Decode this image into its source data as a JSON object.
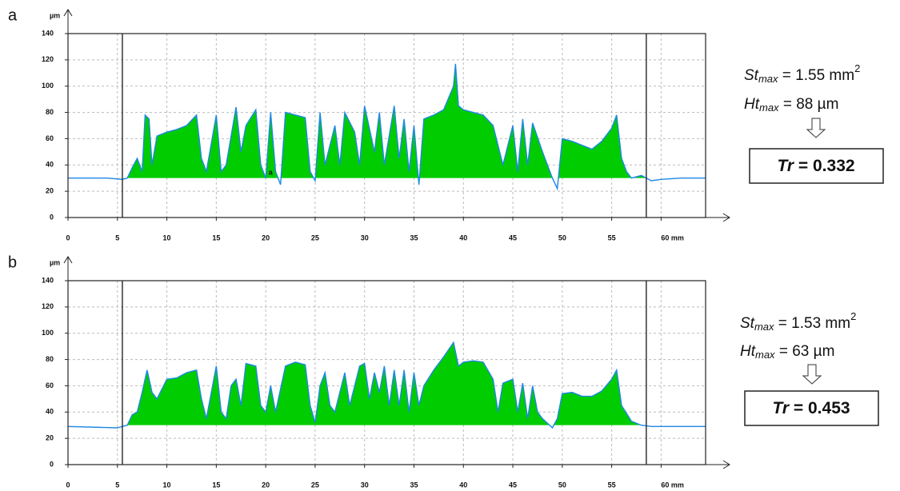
{
  "chart_data": [
    {
      "type": "area",
      "panel_label": "a",
      "y_label": "µm",
      "color": "#1e88e5",
      "fill_color": "#00cc00",
      "fill_base": 30,
      "cursors": [
        5.5,
        58.5
      ],
      "grid": true,
      "xlim": [
        0,
        64.5
      ],
      "ylim": [
        0,
        140
      ],
      "xticks": [
        0,
        5,
        10,
        15,
        20,
        25,
        30,
        35,
        40,
        45,
        50,
        55,
        {
          "value": 60,
          "label": "60 mm"
        }
      ],
      "yticks": [
        0,
        20,
        40,
        60,
        80,
        100,
        120,
        140
      ],
      "marker": {
        "text": "a",
        "x": 20.5,
        "y": 34
      },
      "x": [
        0,
        2,
        4,
        5.5,
        6,
        6.5,
        7,
        7.5,
        7.8,
        8.2,
        8.5,
        9,
        10,
        11,
        12,
        13,
        13.5,
        14,
        15,
        15.5,
        16,
        17,
        17.5,
        18,
        19,
        19.5,
        20,
        20.5,
        21,
        21.5,
        22,
        23,
        24,
        24.5,
        25,
        25.5,
        26,
        27,
        27.5,
        28,
        29,
        29.5,
        30,
        31,
        31.5,
        32,
        33,
        33.5,
        34,
        34.5,
        35,
        35.5,
        36,
        37,
        38,
        39,
        39.2,
        39.5,
        40,
        41,
        42,
        43,
        44,
        45,
        45.5,
        46,
        46.5,
        47,
        48,
        48.5,
        49,
        49.5,
        50,
        51,
        52,
        53,
        54,
        55,
        55.5,
        56,
        56.5,
        57,
        58,
        59,
        60,
        62,
        64.5
      ],
      "values": [
        30,
        30,
        30,
        29,
        30,
        38,
        45,
        35,
        78,
        75,
        40,
        62,
        65,
        67,
        70,
        78,
        45,
        35,
        78,
        35,
        40,
        84,
        50,
        70,
        82,
        40,
        30,
        80,
        35,
        25,
        80,
        78,
        76,
        35,
        28,
        80,
        40,
        70,
        40,
        80,
        65,
        40,
        85,
        50,
        80,
        40,
        85,
        45,
        75,
        35,
        70,
        25,
        75,
        78,
        82,
        100,
        117,
        85,
        82,
        80,
        78,
        70,
        40,
        70,
        35,
        75,
        40,
        72,
        50,
        40,
        30,
        22,
        60,
        58,
        55,
        52,
        58,
        68,
        78,
        45,
        35,
        30,
        32,
        28,
        29,
        30,
        30
      ],
      "annotation": {
        "st": {
          "symbol": "St",
          "sub": "max",
          "text": " = 1.55 mm",
          "sup": "2"
        },
        "ht": {
          "symbol": "Ht",
          "sub": "max",
          "text": " = 88 µm"
        },
        "tr": {
          "symbol": "Tr",
          "text": " = 0.332"
        }
      }
    },
    {
      "type": "area",
      "panel_label": "b",
      "y_label": "µm",
      "color": "#1e88e5",
      "fill_color": "#00cc00",
      "fill_base": 30,
      "cursors": [
        5.5,
        58.5
      ],
      "grid": true,
      "xlim": [
        0,
        64.5
      ],
      "ylim": [
        0,
        140
      ],
      "xticks": [
        0,
        5,
        10,
        15,
        20,
        25,
        30,
        35,
        40,
        45,
        50,
        55,
        {
          "value": 60,
          "label": "60 mm"
        }
      ],
      "yticks": [
        0,
        20,
        40,
        60,
        80,
        100,
        120,
        140
      ],
      "x": [
        0,
        5,
        5.5,
        6,
        6.5,
        7,
        7.5,
        8,
        8.5,
        9,
        10,
        11,
        12,
        13,
        13.5,
        14,
        15,
        15.5,
        16,
        16.5,
        17,
        17.5,
        18,
        19,
        19.5,
        20,
        20.5,
        21,
        22,
        23,
        24,
        24.5,
        25,
        25.5,
        26,
        26.5,
        27,
        28,
        28.5,
        29,
        29.5,
        30,
        30.5,
        31,
        31.5,
        32,
        32.5,
        33,
        33.5,
        34,
        34.5,
        35,
        35.5,
        36,
        37,
        38,
        39,
        39.5,
        40,
        41,
        42,
        43,
        43.5,
        44,
        45,
        45.5,
        46,
        46.5,
        47,
        47.5,
        48,
        49,
        49.5,
        50,
        51,
        52,
        53,
        54,
        55,
        55.5,
        56,
        57,
        58,
        59,
        62,
        64.5
      ],
      "values": [
        29,
        28,
        29,
        30,
        38,
        40,
        55,
        72,
        55,
        50,
        65,
        66,
        70,
        72,
        50,
        35,
        75,
        40,
        35,
        60,
        65,
        45,
        77,
        75,
        45,
        40,
        60,
        40,
        75,
        78,
        76,
        45,
        32,
        60,
        70,
        45,
        40,
        70,
        45,
        60,
        75,
        77,
        50,
        70,
        55,
        75,
        45,
        72,
        45,
        72,
        40,
        70,
        45,
        60,
        72,
        82,
        93,
        75,
        78,
        79,
        78,
        65,
        40,
        62,
        65,
        40,
        62,
        35,
        60,
        40,
        35,
        28,
        35,
        54,
        55,
        52,
        52,
        56,
        65,
        72,
        45,
        33,
        30,
        29,
        29,
        29
      ],
      "annotation": {
        "st": {
          "symbol": "St",
          "sub": "max",
          "text": " = 1.53 mm",
          "sup": "2"
        },
        "ht": {
          "symbol": "Ht",
          "sub": "max",
          "text": " = 63 µm"
        },
        "tr": {
          "symbol": "Tr",
          "text": " = 0.453"
        }
      }
    }
  ]
}
